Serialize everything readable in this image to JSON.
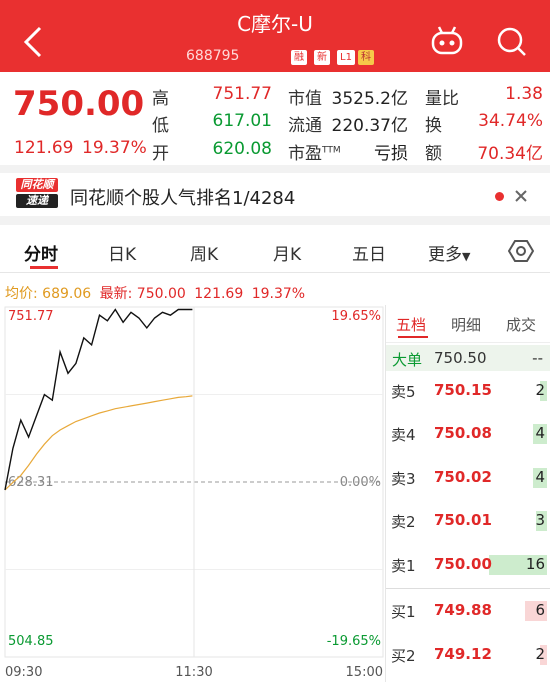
{
  "header": {
    "title": "C摩尔-U",
    "code": "688795",
    "badges": [
      "融",
      "新",
      "L1",
      "科"
    ]
  },
  "quote": {
    "price": "750.00",
    "change": "121.69",
    "change_pct": "19.37%",
    "stats": [
      {
        "label": "高",
        "value": "751.77"
      },
      {
        "label": "低",
        "value": "617.01"
      },
      {
        "label": "开",
        "value": "620.08"
      },
      {
        "label": "市值",
        "value": "3525.2亿"
      },
      {
        "label": "流通",
        "value": "220.37亿"
      },
      {
        "label": "市盈",
        "sup": "TTM",
        "value": "亏损"
      },
      {
        "label": "量比",
        "value": "1.38"
      },
      {
        "label": "换",
        "value": "34.74%"
      },
      {
        "label": "额",
        "value": "70.34亿"
      }
    ]
  },
  "news": {
    "logo": [
      "同花顺",
      "速递"
    ],
    "text": "同花顺个股人气排名1/4284"
  },
  "tabs": [
    "分时",
    "日K",
    "周K",
    "月K",
    "五日",
    "更多"
  ],
  "chart_data": {
    "type": "line",
    "info": {
      "avg_label": "均价:",
      "avg_value": "689.06",
      "latest_label": "最新:",
      "latest_value": "750.00",
      "latest_change": "121.69",
      "latest_pct": "19.37%"
    },
    "x": [
      0,
      5,
      10,
      15,
      20,
      25,
      30,
      35,
      40,
      45,
      50,
      55,
      60,
      65,
      70,
      75,
      80,
      85,
      90,
      95,
      100,
      105,
      110,
      115,
      119
    ],
    "series": [
      {
        "name": "最新",
        "color": "#111111",
        "values": [
          622.7,
          652,
          672,
          660,
          675,
          690,
          686,
          720,
          705,
          712,
          730,
          725,
          746,
          742,
          750,
          741,
          748,
          744,
          737,
          744,
          748,
          746,
          750,
          750,
          750
        ]
      },
      {
        "name": "均价",
        "color": "#e8a93a",
        "values": [
          622.7,
          628,
          633,
          640,
          648,
          655,
          661,
          665,
          668,
          671,
          673,
          675,
          677,
          678.5,
          680,
          681,
          682,
          683,
          684,
          685,
          686,
          687,
          688,
          688.5,
          689.06
        ]
      }
    ],
    "xlim": [
      0,
      240
    ],
    "xticks": [
      {
        "value": 0,
        "label": "09:30"
      },
      {
        "value": 120,
        "label": "11:30"
      },
      {
        "value": 240,
        "label": "15:00"
      }
    ],
    "ylim": [
      504.85,
      751.77
    ],
    "yticks": [
      504.85,
      628.31,
      751.77
    ],
    "y2lim": [
      -19.65,
      19.65
    ],
    "y2ticks": [
      {
        "value": -19.65,
        "label": "-19.65%"
      },
      {
        "value": 0,
        "label": "0.00%"
      },
      {
        "value": 19.65,
        "label": "19.65%"
      }
    ]
  },
  "order_book": {
    "tabs": [
      "五档",
      "明细",
      "成交"
    ],
    "big_order": {
      "label": "大单",
      "price": "750.50",
      "qty": "--"
    },
    "rows": [
      {
        "label": "卖5",
        "price": "750.15",
        "qty": 2
      },
      {
        "label": "卖4",
        "price": "750.08",
        "qty": 4
      },
      {
        "label": "卖3",
        "price": "750.02",
        "qty": 4
      },
      {
        "label": "卖2",
        "price": "750.01",
        "qty": 3
      },
      {
        "label": "卖1",
        "price": "750.00",
        "qty": 16
      },
      {
        "label": "买1",
        "price": "749.88",
        "qty": 6
      },
      {
        "label": "买2",
        "price": "749.12",
        "qty": 2
      }
    ]
  }
}
